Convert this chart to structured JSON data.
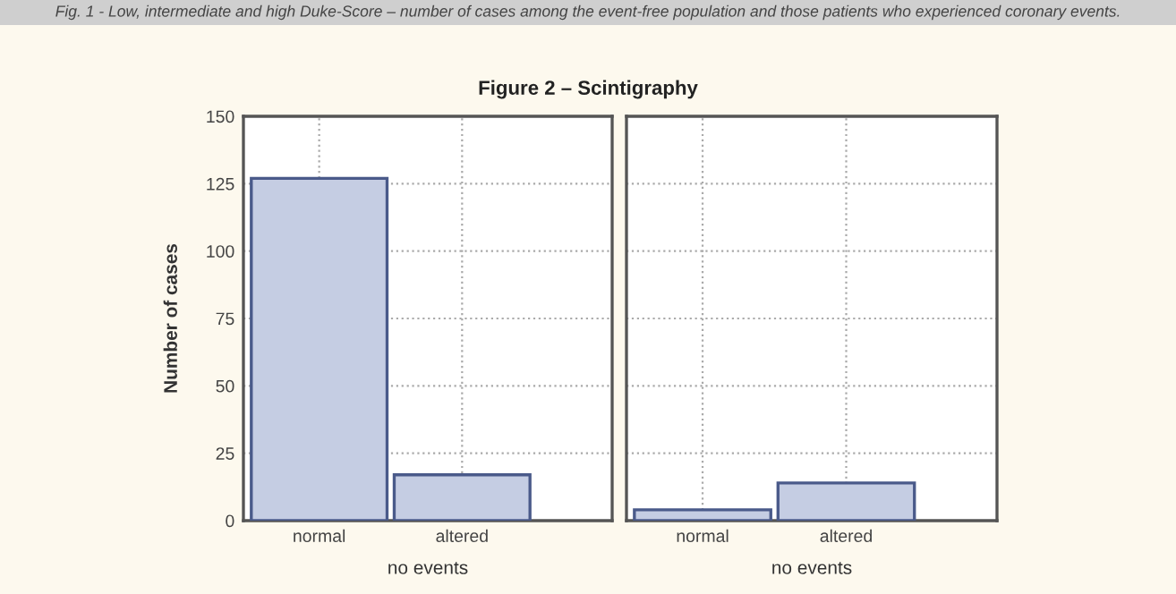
{
  "chart_data": [
    {
      "type": "bar",
      "title": "Figure 2 – Scintigraphy",
      "annotations": [
        "Fig. 1 - Low, intermediate and high Duke-Score – number of cases among the event-free population and those patients who experienced coronary events."
      ],
      "ylabel": "Number of cases",
      "xlabel": "no events",
      "categories": [
        "normal",
        "altered"
      ],
      "values": [
        127,
        17
      ],
      "color": "#c5cde3",
      "ylim": [
        0,
        150
      ],
      "yticks": [
        0,
        25,
        50,
        75,
        100,
        125,
        150
      ],
      "grid": true
    },
    {
      "type": "bar",
      "xlabel": "no events",
      "categories": [
        "normal",
        "altered"
      ],
      "values": [
        4,
        14
      ],
      "color": "#c5cde3",
      "ylim": [
        0,
        150
      ],
      "yticks": [
        0,
        25,
        50,
        75,
        100,
        125,
        150
      ],
      "grid": true,
      "tick_labels": "x"
    }
  ]
}
